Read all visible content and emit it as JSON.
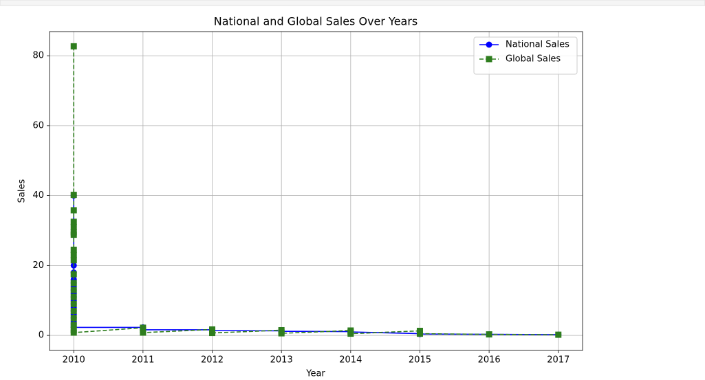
{
  "chart_data": {
    "type": "line",
    "title": "National and Global Sales Over Years",
    "x_label": "Year",
    "y_label": "Sales",
    "x": [
      2010,
      2010,
      2010,
      2010,
      2010,
      2010,
      2010,
      2010,
      2010,
      2010,
      2010,
      2010,
      2010,
      2010,
      2010,
      2010,
      2010,
      2010,
      2010,
      2010,
      2011,
      2011,
      2011,
      2012,
      2012,
      2012,
      2013,
      2013,
      2013,
      2014,
      2014,
      2014,
      2015,
      2015,
      2015,
      2016,
      2017
    ],
    "series": [
      {
        "name": "National Sales",
        "color": "#0000ff",
        "marker": "circle",
        "dash": "solid",
        "values": [
          40,
          20,
          18,
          16,
          15,
          14,
          13,
          12,
          11,
          10,
          9,
          8,
          7,
          6,
          5,
          4,
          3.5,
          3,
          2.5,
          2.3,
          2.3,
          1.5,
          1.6,
          1.6,
          1.1,
          1.4,
          1.3,
          0.9,
          1.2,
          1.1,
          0.7,
          1.0,
          0.5,
          0.4,
          0.4,
          0.3,
          0.2
        ]
      },
      {
        "name": "Global Sales",
        "color": "#2e7d1e",
        "marker": "square",
        "dash": "dashed",
        "values": [
          82.7,
          40.2,
          35.8,
          32.5,
          31,
          29.5,
          28.8,
          24.5,
          23,
          21.5,
          17.5,
          15,
          13,
          11,
          9,
          7,
          5,
          3,
          1.5,
          0.8,
          2.2,
          1.5,
          0.8,
          1.7,
          1.2,
          0.7,
          1.5,
          1.0,
          0.6,
          1.4,
          0.9,
          0.5,
          1.3,
          0.8,
          0.5,
          0.3,
          0.2
        ]
      }
    ],
    "xlim": [
      2009.65,
      2017.35
    ],
    "ylim": [
      -4.3,
      86.9
    ],
    "xticks": [
      2010,
      2011,
      2012,
      2013,
      2014,
      2015,
      2016,
      2017
    ],
    "yticks": [
      0,
      20,
      40,
      60,
      80
    ],
    "grid": true,
    "legend": "upper right"
  }
}
